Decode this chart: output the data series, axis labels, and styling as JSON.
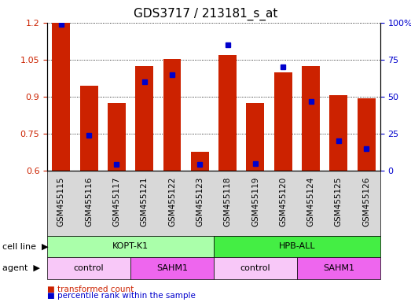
{
  "title": "GDS3717 / 213181_s_at",
  "samples": [
    "GSM455115",
    "GSM455116",
    "GSM455117",
    "GSM455121",
    "GSM455122",
    "GSM455123",
    "GSM455118",
    "GSM455119",
    "GSM455120",
    "GSM455124",
    "GSM455125",
    "GSM455126"
  ],
  "red_values": [
    1.2,
    0.945,
    0.875,
    1.025,
    1.052,
    0.675,
    1.068,
    0.875,
    1.0,
    1.025,
    0.905,
    0.893
  ],
  "blue_pct": [
    99,
    24,
    4,
    60,
    65,
    4,
    85,
    5,
    70,
    47,
    20,
    15
  ],
  "ylim_left": [
    0.6,
    1.2
  ],
  "ylim_right": [
    0,
    100
  ],
  "yticks_left": [
    0.6,
    0.75,
    0.9,
    1.05,
    1.2
  ],
  "yticks_right": [
    0,
    25,
    50,
    75,
    100
  ],
  "ytick_labels_left": [
    "0.6",
    "0.75",
    "0.9",
    "1.05",
    "1.2"
  ],
  "ytick_labels_right": [
    "0",
    "25",
    "50",
    "75",
    "100%"
  ],
  "bar_color": "#cc2200",
  "dot_color": "#0000cc",
  "plot_bg_color": "#ffffff",
  "fig_bg_color": "#ffffff",
  "xtick_bg_color": "#d8d8d8",
  "cell_line_groups": [
    {
      "label": "KOPT-K1",
      "start": 0,
      "end": 6,
      "color": "#aaffaa"
    },
    {
      "label": "HPB-ALL",
      "start": 6,
      "end": 12,
      "color": "#44ee44"
    }
  ],
  "agent_groups": [
    {
      "label": "control",
      "start": 0,
      "end": 3,
      "color": "#f8c8f8"
    },
    {
      "label": "SAHM1",
      "start": 3,
      "end": 6,
      "color": "#ee66ee"
    },
    {
      "label": "control",
      "start": 6,
      "end": 9,
      "color": "#f8c8f8"
    },
    {
      "label": "SAHM1",
      "start": 9,
      "end": 12,
      "color": "#ee66ee"
    }
  ],
  "legend_items": [
    {
      "label": "transformed count",
      "color": "#cc2200"
    },
    {
      "label": "percentile rank within the sample",
      "color": "#0000cc"
    }
  ],
  "bar_width": 0.65,
  "title_fontsize": 11,
  "tick_fontsize": 8,
  "label_fontsize": 8,
  "legend_fontsize": 7.5,
  "group_fontsize": 8
}
